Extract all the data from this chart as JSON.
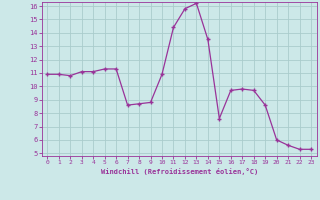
{
  "x": [
    0,
    1,
    2,
    3,
    4,
    5,
    6,
    7,
    8,
    9,
    10,
    11,
    12,
    13,
    14,
    15,
    16,
    17,
    18,
    19,
    20,
    21,
    22,
    23
  ],
  "y": [
    10.9,
    10.9,
    10.8,
    11.1,
    11.1,
    11.3,
    11.3,
    8.6,
    8.7,
    8.8,
    10.9,
    14.4,
    15.8,
    16.2,
    13.5,
    7.6,
    9.7,
    9.8,
    9.7,
    8.6,
    6.0,
    5.6,
    5.3,
    5.3
  ],
  "line_color": "#993399",
  "marker": "+",
  "bg_color": "#cce8e8",
  "grid_color": "#aacccc",
  "xlabel": "Windchill (Refroidissement éolien,°C)",
  "xlabel_color": "#993399",
  "tick_color": "#993399",
  "ylim": [
    4.8,
    16.3
  ],
  "xlim": [
    -0.5,
    23.5
  ],
  "yticks": [
    5,
    6,
    7,
    8,
    9,
    10,
    11,
    12,
    13,
    14,
    15,
    16
  ],
  "xticks": [
    0,
    1,
    2,
    3,
    4,
    5,
    6,
    7,
    8,
    9,
    10,
    11,
    12,
    13,
    14,
    15,
    16,
    17,
    18,
    19,
    20,
    21,
    22,
    23
  ]
}
